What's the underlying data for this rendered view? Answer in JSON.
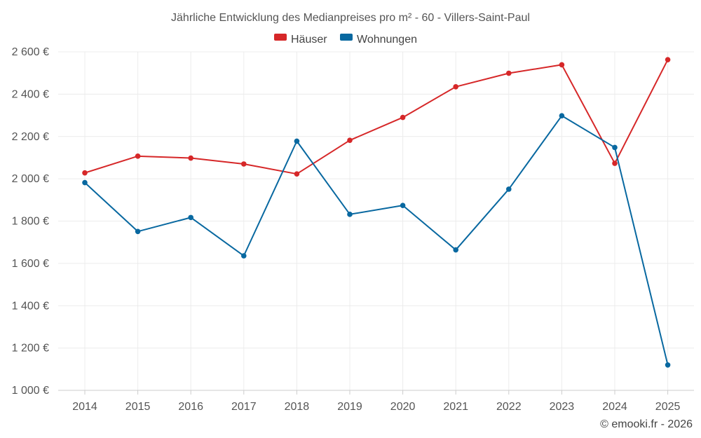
{
  "chart_data": {
    "type": "line",
    "title": "Jährliche Entwicklung des Medianpreises pro m² - 60 - Villers-Saint-Paul",
    "categories": [
      "2014",
      "2015",
      "2016",
      "2017",
      "2018",
      "2019",
      "2020",
      "2021",
      "2022",
      "2023",
      "2024",
      "2025"
    ],
    "series": [
      {
        "name": "Häuser",
        "color": "#d62728",
        "values": [
          2028,
          2107,
          2098,
          2070,
          2023,
          2182,
          2290,
          2435,
          2499,
          2539,
          2073,
          2563
        ]
      },
      {
        "name": "Wohnungen",
        "color": "#0868a0",
        "values": [
          1982,
          1751,
          1817,
          1636,
          2178,
          1832,
          1874,
          1664,
          1951,
          2298,
          2148,
          1120
        ]
      }
    ],
    "ylim": [
      1000,
      2600
    ],
    "yticks": [
      1000,
      1200,
      1400,
      1600,
      1800,
      2000,
      2200,
      2400,
      2600
    ],
    "ytick_labels": [
      "1 000 €",
      "1 200 €",
      "1 400 €",
      "1 600 €",
      "1 800 €",
      "2 000 €",
      "2 200 €",
      "2 400 €",
      "2 600 €"
    ],
    "legend": "top-center",
    "grid": true
  },
  "credit": "© emooki.fr - 2026"
}
